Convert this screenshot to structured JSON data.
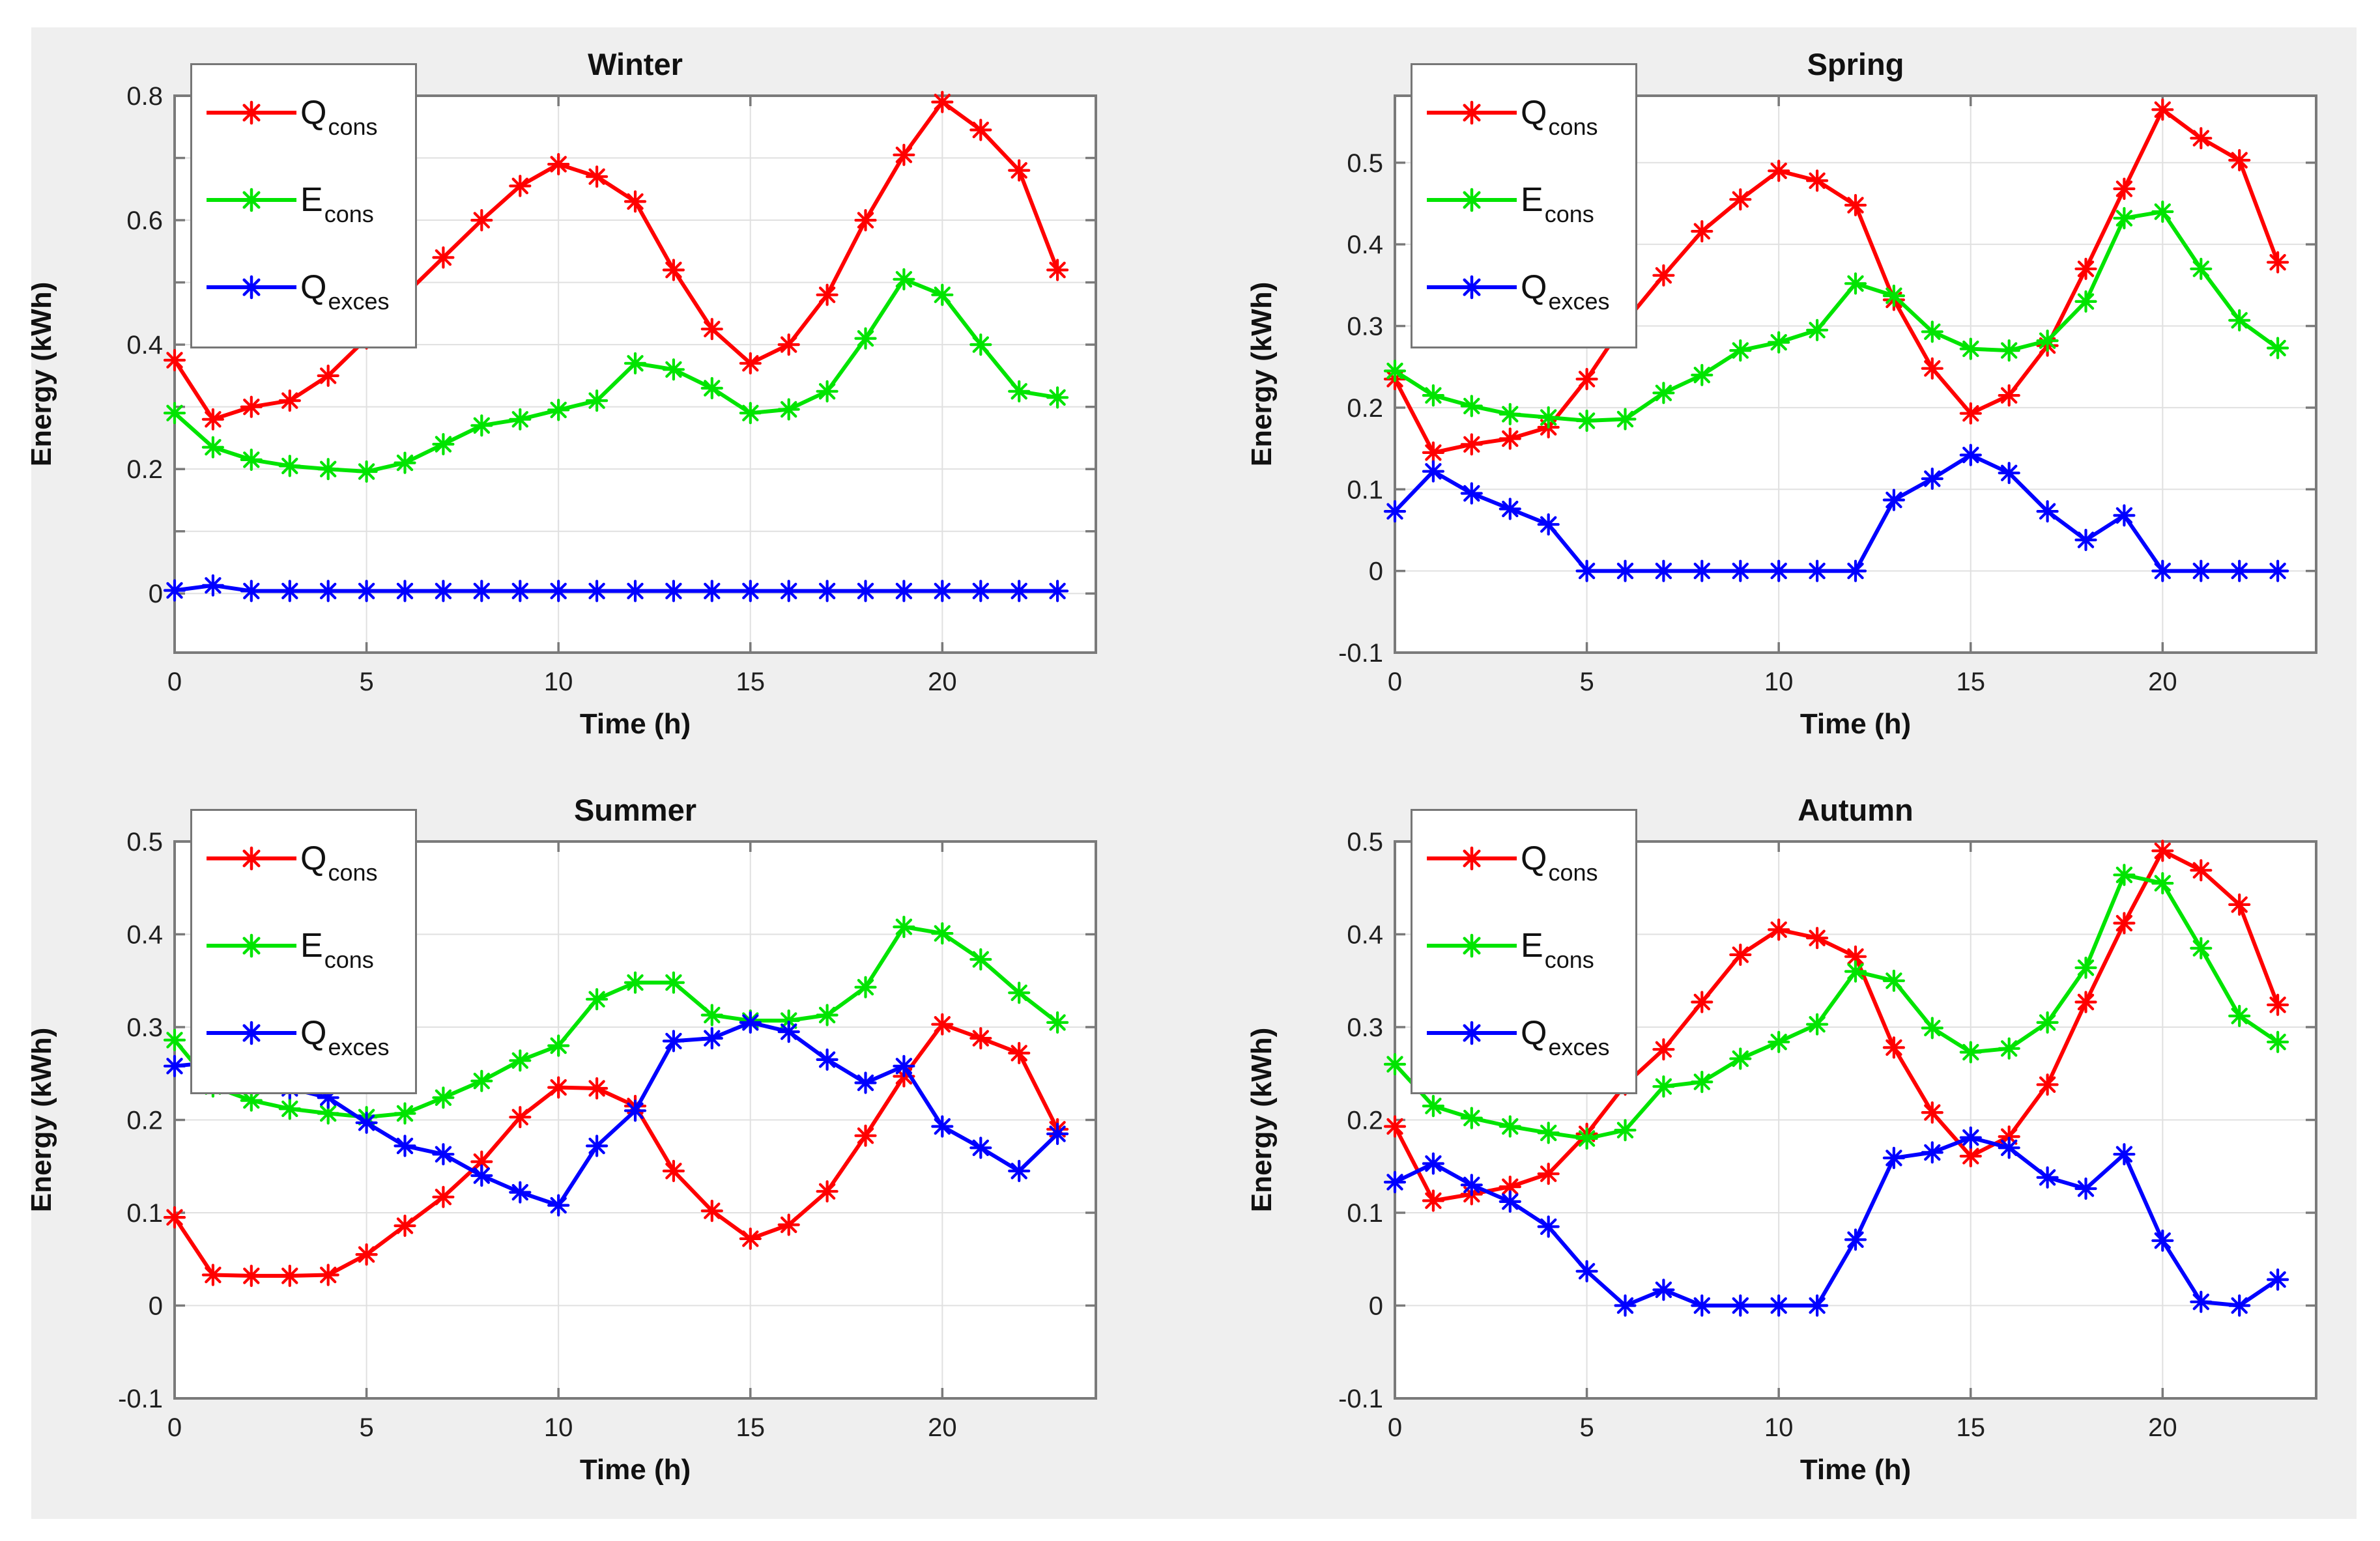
{
  "figure": {
    "outer_background": "#ffffff",
    "background_color": "#efefef",
    "plot_background": "#ffffff",
    "axis_color": "#7a7a7a",
    "grid_color": "#e0e0e0",
    "tick_text_color": "#1f1f1f",
    "label_text_color": "#111111",
    "legend_border_color": "#767676",
    "legend_background": "#ffffff"
  },
  "chart_data": [
    {
      "type": "line",
      "title": "Winter",
      "xlabel": "Time (h)",
      "ylabel": "Energy (kWh)",
      "xlim": [
        0,
        24
      ],
      "ylim": [
        -0.095,
        0.8
      ],
      "xticks": [
        0,
        5,
        10,
        15,
        20
      ],
      "xtick_labels": [
        "0",
        "5",
        "10",
        "15",
        "20"
      ],
      "yticks": [
        0,
        0.1,
        0.2,
        0.3,
        0.4,
        0.5,
        0.6,
        0.7,
        0.8
      ],
      "ytick_labels": [
        "0",
        "",
        "0.2",
        "",
        "0.4",
        "",
        "0.6",
        "",
        "0.8"
      ],
      "grid": true,
      "legend_position": "top-left",
      "x": [
        0,
        1,
        2,
        3,
        4,
        5,
        6,
        7,
        8,
        9,
        10,
        11,
        12,
        13,
        14,
        15,
        16,
        17,
        18,
        19,
        20,
        21,
        22,
        23
      ],
      "series": [
        {
          "name": "Q_cons",
          "label_main": "Q",
          "label_sub": "cons",
          "color": "#ff0000",
          "marker": "asterisk",
          "values": [
            0.375,
            0.28,
            0.3,
            0.31,
            0.35,
            0.41,
            0.48,
            0.54,
            0.6,
            0.655,
            0.69,
            0.67,
            0.63,
            0.52,
            0.425,
            0.37,
            0.4,
            0.48,
            0.6,
            0.705,
            0.79,
            0.745,
            0.68,
            0.52
          ]
        },
        {
          "name": "E_cons",
          "label_main": "E",
          "label_sub": "cons",
          "color": "#00e400",
          "marker": "asterisk",
          "values": [
            0.29,
            0.235,
            0.215,
            0.205,
            0.2,
            0.196,
            0.21,
            0.24,
            0.27,
            0.28,
            0.295,
            0.31,
            0.37,
            0.36,
            0.33,
            0.29,
            0.296,
            0.325,
            0.41,
            0.505,
            0.48,
            0.4,
            0.325,
            0.315
          ]
        },
        {
          "name": "Q_exces",
          "label_main": "Q",
          "label_sub": "exces",
          "color": "#0000ff",
          "marker": "asterisk",
          "values": [
            0.005,
            0.013,
            0.004,
            0.004,
            0.004,
            0.004,
            0.004,
            0.004,
            0.004,
            0.004,
            0.004,
            0.004,
            0.004,
            0.004,
            0.004,
            0.004,
            0.004,
            0.004,
            0.004,
            0.004,
            0.004,
            0.004,
            0.004,
            0.004
          ]
        }
      ]
    },
    {
      "type": "line",
      "title": "Spring",
      "xlabel": "Time (h)",
      "ylabel": "Energy (kWh)",
      "xlim": [
        0,
        24
      ],
      "ylim": [
        -0.1,
        0.582
      ],
      "xticks": [
        0,
        5,
        10,
        15,
        20
      ],
      "xtick_labels": [
        "0",
        "5",
        "10",
        "15",
        "20"
      ],
      "yticks": [
        -0.1,
        0,
        0.1,
        0.2,
        0.3,
        0.4,
        0.5
      ],
      "ytick_labels": [
        "-0.1",
        "0",
        "0.1",
        "0.2",
        "0.3",
        "0.4",
        "0.5"
      ],
      "grid": true,
      "legend_position": "top-left",
      "x": [
        0,
        1,
        2,
        3,
        4,
        5,
        6,
        7,
        8,
        9,
        10,
        11,
        12,
        13,
        14,
        15,
        16,
        17,
        18,
        19,
        20,
        21,
        22,
        23
      ],
      "series": [
        {
          "name": "Q_cons",
          "label_main": "Q",
          "label_sub": "cons",
          "color": "#ff0000",
          "marker": "asterisk",
          "values": [
            0.235,
            0.145,
            0.155,
            0.162,
            0.176,
            0.235,
            0.305,
            0.362,
            0.416,
            0.455,
            0.49,
            0.478,
            0.448,
            0.332,
            0.248,
            0.193,
            0.215,
            0.276,
            0.37,
            0.468,
            0.565,
            0.53,
            0.503,
            0.378
          ]
        },
        {
          "name": "E_cons",
          "label_main": "E",
          "label_sub": "cons",
          "color": "#00e400",
          "marker": "asterisk",
          "values": [
            0.245,
            0.215,
            0.202,
            0.192,
            0.188,
            0.184,
            0.186,
            0.218,
            0.24,
            0.27,
            0.28,
            0.295,
            0.352,
            0.337,
            0.293,
            0.272,
            0.27,
            0.282,
            0.33,
            0.432,
            0.44,
            0.37,
            0.307,
            0.273
          ]
        },
        {
          "name": "Q_exces",
          "label_main": "Q",
          "label_sub": "exces",
          "color": "#0000ff",
          "marker": "asterisk",
          "values": [
            0.073,
            0.122,
            0.095,
            0.076,
            0.057,
            0,
            0,
            0,
            0,
            0,
            0,
            0,
            0,
            0.087,
            0.113,
            0.142,
            0.12,
            0.073,
            0.038,
            0.068,
            0,
            0,
            0,
            0
          ]
        }
      ]
    },
    {
      "type": "line",
      "title": "Summer",
      "xlabel": "Time (h)",
      "ylabel": "Energy (kWh)",
      "xlim": [
        0,
        24
      ],
      "ylim": [
        -0.1,
        0.5
      ],
      "xticks": [
        0,
        5,
        10,
        15,
        20
      ],
      "xtick_labels": [
        "0",
        "5",
        "10",
        "15",
        "20"
      ],
      "yticks": [
        -0.1,
        0,
        0.1,
        0.2,
        0.3,
        0.4,
        0.5
      ],
      "ytick_labels": [
        "-0.1",
        "0",
        "0.1",
        "0.2",
        "0.3",
        "0.4",
        "0.5"
      ],
      "grid": true,
      "legend_position": "top-left",
      "x": [
        0,
        1,
        2,
        3,
        4,
        5,
        6,
        7,
        8,
        9,
        10,
        11,
        12,
        13,
        14,
        15,
        16,
        17,
        18,
        19,
        20,
        21,
        22,
        23
      ],
      "series": [
        {
          "name": "Q_cons",
          "label_main": "Q",
          "label_sub": "cons",
          "color": "#ff0000",
          "marker": "asterisk",
          "values": [
            0.095,
            0.033,
            0.032,
            0.032,
            0.033,
            0.055,
            0.086,
            0.117,
            0.155,
            0.203,
            0.235,
            0.234,
            0.215,
            0.145,
            0.102,
            0.072,
            0.087,
            0.123,
            0.183,
            0.247,
            0.303,
            0.288,
            0.272,
            0.19
          ]
        },
        {
          "name": "E_cons",
          "label_main": "E",
          "label_sub": "cons",
          "color": "#00e400",
          "marker": "asterisk",
          "values": [
            0.286,
            0.236,
            0.221,
            0.212,
            0.207,
            0.203,
            0.207,
            0.224,
            0.242,
            0.264,
            0.28,
            0.33,
            0.348,
            0.348,
            0.313,
            0.307,
            0.307,
            0.313,
            0.343,
            0.408,
            0.401,
            0.373,
            0.337,
            0.305
          ]
        },
        {
          "name": "Q_exces",
          "label_main": "Q",
          "label_sub": "exces",
          "color": "#0000ff",
          "marker": "asterisk",
          "values": [
            0.258,
            0.262,
            0.244,
            0.234,
            0.224,
            0.197,
            0.172,
            0.163,
            0.14,
            0.122,
            0.108,
            0.172,
            0.21,
            0.285,
            0.288,
            0.305,
            0.295,
            0.265,
            0.24,
            0.258,
            0.193,
            0.17,
            0.145,
            0.185
          ]
        }
      ]
    },
    {
      "type": "line",
      "title": "Autumn",
      "xlabel": "Time (h)",
      "ylabel": "Energy (kWh)",
      "xlim": [
        0,
        24
      ],
      "ylim": [
        -0.1,
        0.5
      ],
      "xticks": [
        0,
        5,
        10,
        15,
        20
      ],
      "xtick_labels": [
        "0",
        "5",
        "10",
        "15",
        "20"
      ],
      "yticks": [
        -0.1,
        0,
        0.1,
        0.2,
        0.3,
        0.4,
        0.5
      ],
      "ytick_labels": [
        "-0.1",
        "0",
        "0.1",
        "0.2",
        "0.3",
        "0.4",
        "0.5"
      ],
      "grid": true,
      "legend_position": "top-left",
      "x": [
        0,
        1,
        2,
        3,
        4,
        5,
        6,
        7,
        8,
        9,
        10,
        11,
        12,
        13,
        14,
        15,
        16,
        17,
        18,
        19,
        20,
        21,
        22,
        23
      ],
      "series": [
        {
          "name": "Q_cons",
          "label_main": "Q",
          "label_sub": "cons",
          "color": "#ff0000",
          "marker": "asterisk",
          "values": [
            0.193,
            0.113,
            0.12,
            0.128,
            0.142,
            0.185,
            0.238,
            0.276,
            0.327,
            0.378,
            0.405,
            0.396,
            0.376,
            0.278,
            0.208,
            0.161,
            0.182,
            0.238,
            0.327,
            0.412,
            0.49,
            0.469,
            0.432,
            0.324
          ]
        },
        {
          "name": "E_cons",
          "label_main": "E",
          "label_sub": "cons",
          "color": "#00e400",
          "marker": "asterisk",
          "values": [
            0.26,
            0.215,
            0.202,
            0.193,
            0.186,
            0.18,
            0.189,
            0.236,
            0.241,
            0.266,
            0.284,
            0.303,
            0.36,
            0.35,
            0.299,
            0.273,
            0.277,
            0.305,
            0.364,
            0.464,
            0.455,
            0.385,
            0.312,
            0.284
          ]
        },
        {
          "name": "Q_exces",
          "label_main": "Q",
          "label_sub": "exces",
          "color": "#0000ff",
          "marker": "asterisk",
          "values": [
            0.133,
            0.153,
            0.13,
            0.112,
            0.085,
            0.037,
            0,
            0.017,
            0,
            0,
            0,
            0,
            0.071,
            0.159,
            0.165,
            0.181,
            0.17,
            0.138,
            0.126,
            0.163,
            0.07,
            0.004,
            0,
            0.028
          ]
        }
      ]
    }
  ]
}
